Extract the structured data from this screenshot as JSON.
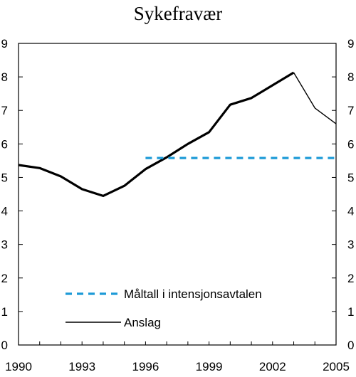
{
  "chart_data": {
    "type": "line",
    "title": "Sykefravær",
    "xlabel": "",
    "ylabel": "",
    "xlim": [
      1990,
      2005
    ],
    "ylim": [
      0,
      9
    ],
    "x_ticks": [
      "1990",
      "1993",
      "1996",
      "1999",
      "2002",
      "2005"
    ],
    "y_ticks": [
      "0",
      "1",
      "2",
      "3",
      "4",
      "5",
      "6",
      "7",
      "8",
      "9"
    ],
    "grid": false,
    "legend_position": "bottom-left inside plot",
    "series": [
      {
        "name": "",
        "style": "thick-solid",
        "color": "#000000",
        "x": [
          1990,
          1991,
          1992,
          1993,
          1994,
          1995,
          1996,
          1997,
          1998,
          1999,
          2000,
          2001,
          2002,
          2003
        ],
        "y": [
          5.37,
          5.28,
          5.03,
          4.65,
          4.45,
          4.75,
          5.25,
          5.6,
          6.0,
          6.35,
          7.17,
          7.37,
          7.75,
          8.13
        ]
      },
      {
        "name": "Anslag",
        "style": "thin-solid",
        "color": "#000000",
        "x": [
          2003,
          2004,
          2005
        ],
        "y": [
          8.13,
          7.07,
          6.6
        ]
      },
      {
        "name": "Måltall i intensjonsavtalen",
        "style": "dashed",
        "color": "#1e9bd7",
        "x": [
          1996,
          2005
        ],
        "y": [
          5.58,
          5.58
        ]
      }
    ]
  }
}
